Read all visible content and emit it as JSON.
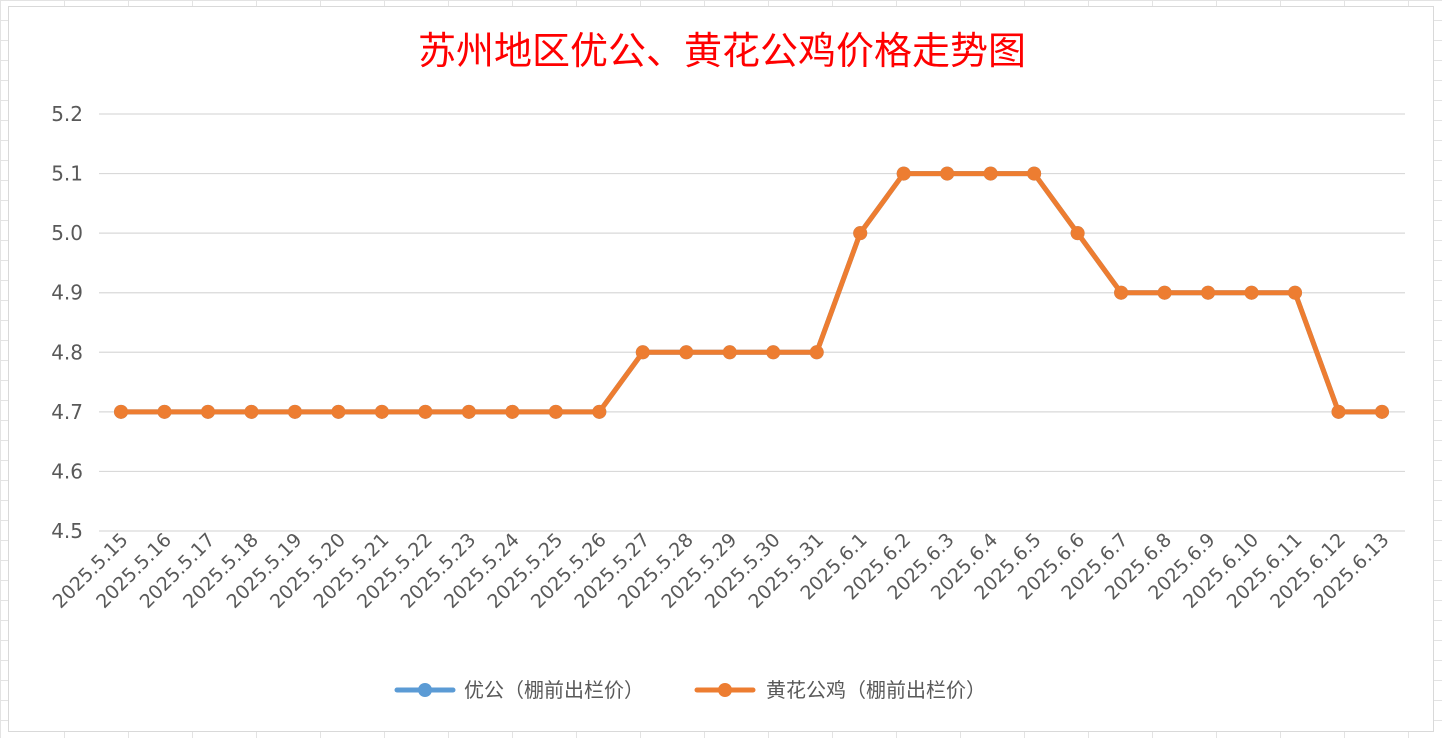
{
  "chart_data": {
    "type": "line",
    "title": "苏州地区优公、黄花公鸡价格走势图",
    "xlabel": "",
    "ylabel": "",
    "ylim": [
      4.5,
      5.2
    ],
    "ytick_step": 0.1,
    "grid": "horizontal",
    "legend_position": "bottom",
    "categories": [
      "2025.5.15",
      "2025.5.16",
      "2025.5.17",
      "2025.5.18",
      "2025.5.19",
      "2025.5.20",
      "2025.5.21",
      "2025.5.22",
      "2025.5.23",
      "2025.5.24",
      "2025.5.25",
      "2025.5.26",
      "2025.5.27",
      "2025.5.28",
      "2025.5.29",
      "2025.5.30",
      "2025.5.31",
      "2025.6.1",
      "2025.6.2",
      "2025.6.3",
      "2025.6.4",
      "2025.6.5",
      "2025.6.6",
      "2025.6.7",
      "2025.6.8",
      "2025.6.9",
      "2025.6.10",
      "2025.6.11",
      "2025.6.12",
      "2025.6.13"
    ],
    "series": [
      {
        "name": "优公（棚前出栏价）",
        "color": "#5b9bd5",
        "values": [
          4.7,
          4.7,
          4.7,
          4.7,
          4.7,
          4.7,
          4.7,
          4.7,
          4.7,
          4.7,
          4.7,
          4.7,
          4.8,
          4.8,
          4.8,
          4.8,
          4.8,
          5.0,
          5.1,
          5.1,
          5.1,
          5.1,
          5.0,
          4.9,
          4.9,
          4.9,
          4.9,
          4.9,
          4.7,
          4.7
        ]
      },
      {
        "name": "黄花公鸡（棚前出栏价）",
        "color": "#ed7d31",
        "values": [
          4.7,
          4.7,
          4.7,
          4.7,
          4.7,
          4.7,
          4.7,
          4.7,
          4.7,
          4.7,
          4.7,
          4.7,
          4.8,
          4.8,
          4.8,
          4.8,
          4.8,
          5.0,
          5.1,
          5.1,
          5.1,
          5.1,
          5.0,
          4.9,
          4.9,
          4.9,
          4.9,
          4.9,
          4.7,
          4.7
        ]
      }
    ]
  }
}
